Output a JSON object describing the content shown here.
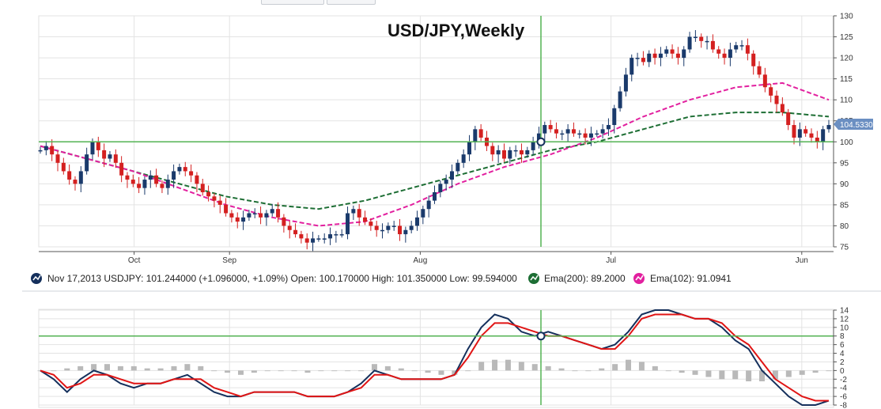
{
  "chart_data": [
    {
      "type": "candlestick",
      "title": "USD/JPY,Weekly",
      "x_ticks": [
        "Oct",
        "Sep",
        "Aug",
        "Jul",
        "Jun"
      ],
      "y_ticks": [
        "130",
        "125",
        "120",
        "115",
        "110",
        "105",
        "100",
        "95",
        "90",
        "85",
        "80",
        "75"
      ],
      "ylim": [
        75,
        130
      ],
      "grid": true,
      "crosshair_value": 100,
      "last_price_label": "104.5330",
      "price_path": [
        98,
        99,
        97,
        95,
        93,
        91,
        90,
        93,
        97,
        100,
        98,
        96,
        97,
        95,
        92,
        91,
        90,
        89,
        91,
        92,
        90,
        89,
        91,
        93,
        94,
        93,
        92,
        90,
        88,
        87,
        86,
        85,
        83,
        82,
        81,
        82,
        83,
        83,
        82,
        83,
        84,
        82,
        80,
        79,
        78,
        77,
        76,
        77,
        77,
        77,
        78,
        78,
        78,
        83,
        84,
        82,
        81,
        80,
        79,
        79,
        80,
        80,
        78,
        79,
        80,
        82,
        84,
        86,
        88,
        90,
        91,
        93,
        95,
        97,
        100,
        103,
        101,
        99,
        97,
        98,
        96,
        98,
        98,
        97,
        98,
        100,
        102,
        104,
        103,
        102,
        102,
        103,
        102,
        102,
        101,
        102,
        102,
        103,
        104,
        108,
        112,
        116,
        120,
        120,
        119,
        121,
        120,
        121,
        122,
        121,
        120,
        122,
        125,
        125,
        124,
        124,
        122,
        121,
        120,
        122,
        123,
        123,
        121,
        118,
        116,
        113,
        111,
        109,
        107,
        104,
        101,
        103,
        102,
        101,
        100,
        103,
        104
      ],
      "series": [
        {
          "name": "Ema(200)",
          "color": "#1d6e34",
          "values": [
            99,
            96,
            93,
            90,
            87,
            85,
            84,
            86,
            89,
            92,
            95,
            98,
            100,
            103,
            106,
            107,
            107,
            106
          ]
        },
        {
          "name": "Ema(102)",
          "color": "#e2209f",
          "values": [
            99,
            96,
            93,
            89,
            85,
            82,
            80,
            81,
            85,
            90,
            94,
            97,
            101,
            106,
            110,
            113,
            114,
            110
          ]
        }
      ],
      "legend": {
        "price_line": "Nov 17,2013 USDJPY: 101.244000 (+1.096000, +1.09%) Open: 100.170000 High: 101.350000 Low: 99.594000",
        "ema200": "Ema(200): 89.2000",
        "ema102": "Ema(102): 91.0941"
      }
    },
    {
      "type": "line",
      "indicator": "oscillator",
      "y_ticks": [
        "14",
        "12",
        "10",
        "8",
        "6",
        "4",
        "2",
        "0",
        "-2",
        "-4",
        "-6",
        "-8"
      ],
      "ylim": [
        -8,
        14
      ],
      "crosshair_value": 8,
      "series": [
        {
          "color": "#15305c",
          "values": [
            0,
            -2,
            -5,
            -2,
            0,
            -1,
            -3,
            -4,
            -3,
            -3,
            -2,
            -1,
            -3,
            -5,
            -6,
            -6,
            -5,
            -5,
            -5,
            -5,
            -6,
            -6,
            -6,
            -5,
            -3,
            0,
            -1,
            -2,
            -2,
            -2,
            -2,
            -1,
            5,
            10,
            13,
            12,
            9,
            8,
            9,
            8,
            7,
            6,
            5,
            6,
            9,
            13,
            14,
            14,
            13,
            12,
            12,
            10,
            7,
            5,
            0,
            -3,
            -6,
            -8,
            -8,
            -7
          ]
        },
        {
          "color": "#e01515",
          "values": [
            0,
            -1,
            -4,
            -3,
            -1,
            -1,
            -2,
            -3,
            -3,
            -3,
            -2,
            -2,
            -2,
            -4,
            -5,
            -6,
            -5,
            -5,
            -5,
            -5,
            -6,
            -6,
            -6,
            -5,
            -4,
            -1,
            -1,
            -2,
            -2,
            -2,
            -2,
            -1,
            3,
            8,
            11,
            11,
            10,
            9,
            8,
            8,
            7,
            6,
            5,
            5,
            8,
            12,
            13,
            13,
            13,
            12,
            12,
            11,
            8,
            6,
            2,
            -2,
            -4,
            -6,
            -7,
            -7
          ]
        }
      ],
      "histogram": [
        0,
        0,
        0.5,
        1,
        1.5,
        1.5,
        1,
        1,
        0.5,
        0.5,
        1,
        1.5,
        1,
        0,
        -0.5,
        -1,
        -0.5,
        0,
        0,
        0,
        -0.5,
        0,
        0,
        0,
        0,
        1.5,
        1,
        0.5,
        0,
        -0.5,
        -1,
        -1,
        0,
        2,
        2.5,
        2.5,
        2,
        1.5,
        1,
        0.5,
        0,
        0,
        0.5,
        1.5,
        2.5,
        2,
        1,
        0,
        -0.5,
        -1,
        -1.5,
        -2,
        -2,
        -2.5,
        -2.5,
        -2,
        -1.5,
        -1,
        -0.5,
        0
      ]
    }
  ],
  "colors": {
    "price_up": "#1a3a6b",
    "price_down": "#d42020",
    "crosshair": "#53b353",
    "grid": "#e3e3e3",
    "axis": "#555555",
    "badge": "#6b8fc2"
  },
  "icons": {
    "price": "line-chart-icon",
    "ema200": "line-chart-icon",
    "ema102": "line-chart-icon"
  }
}
